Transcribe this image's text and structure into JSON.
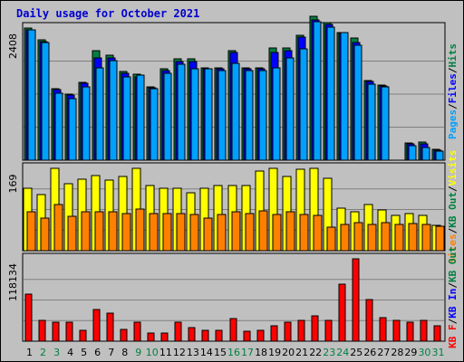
{
  "chart_data": {
    "type": "bar",
    "title": "Daily usage for October 2021",
    "days": [
      "1",
      "2",
      "3",
      "4",
      "5",
      "6",
      "7",
      "8",
      "9",
      "10",
      "11",
      "12",
      "13",
      "14",
      "15",
      "16",
      "17",
      "18",
      "19",
      "20",
      "21",
      "22",
      "23",
      "24",
      "25",
      "26",
      "27",
      "28",
      "29",
      "30",
      "31"
    ],
    "weekend_days": [
      "2",
      "3",
      "9",
      "10",
      "16",
      "17",
      "23",
      "24",
      "30",
      "31"
    ],
    "panels": [
      {
        "id": "hits-files-pages",
        "max_label": "2408",
        "ymax": 2408,
        "legend": [
          {
            "text": "Pages",
            "color": "#00a0ff"
          },
          {
            "text": "/",
            "color": "#000000"
          },
          {
            "text": "Files",
            "color": "#0000ff"
          },
          {
            "text": "/",
            "color": "#000000"
          },
          {
            "text": "Hits",
            "color": "#008040"
          }
        ],
        "series": [
          {
            "name": "Hits",
            "color": "#008040",
            "values": [
              2408,
              2190,
              1300,
              1200,
              1420,
              2000,
              1910,
              1620,
              1560,
              1330,
              1670,
              1840,
              1840,
              1680,
              1680,
              2000,
              1690,
              1690,
              2040,
              2040,
              2280,
              2630,
              2500,
              2330,
              2230,
              1450,
              1370,
              0,
              320,
              330,
              200
            ]
          },
          {
            "name": "Files",
            "color": "#0000ff",
            "values": [
              2380,
              2160,
              1280,
              1180,
              1400,
              1870,
              1870,
              1580,
              1520,
              1320,
              1640,
              1790,
              1800,
              1670,
              1670,
              1960,
              1670,
              1670,
              1970,
              2000,
              2250,
              2560,
              2480,
              2310,
              2150,
              1440,
              1360,
              0,
              300,
              300,
              180
            ]
          },
          {
            "name": "Pages",
            "color": "#00a0ff",
            "values": [
              2380,
              2140,
              1220,
              1120,
              1340,
              1690,
              1820,
              1520,
              1550,
              1300,
              1580,
              1750,
              1660,
              1660,
              1640,
              1760,
              1630,
              1630,
              1690,
              1860,
              2030,
              2530,
              2420,
              2330,
              2090,
              1390,
              1330,
              0,
              260,
              230,
              160
            ]
          }
        ]
      },
      {
        "id": "sites-kbout-visits",
        "max_label": "169",
        "ymax": 169,
        "legend": [
          {
            "text": "Sites",
            "color": "#ff8000"
          },
          {
            "text": "/",
            "color": "#000000"
          },
          {
            "text": "KB Out",
            "color": "#008040"
          },
          {
            "text": "/",
            "color": "#000000"
          },
          {
            "text": "Visits",
            "color": "#ffff00"
          }
        ],
        "series": [
          {
            "name": "Visits",
            "color": "#ffff00",
            "values": [
              129,
              116,
              169,
              138,
              146,
              155,
              145,
              152,
              169,
              134,
              129,
              129,
              119,
              129,
              134,
              134,
              134,
              164,
              169,
              153,
              167,
              169,
              149,
              87,
              79,
              94,
              84,
              72,
              77,
              72,
              52
            ]
          },
          {
            "name": "Sites",
            "color": "#ff8000",
            "values": [
              79,
              67,
              95,
              70,
              79,
              79,
              79,
              77,
              86,
              76,
              77,
              76,
              74,
              66,
              74,
              79,
              77,
              82,
              74,
              79,
              74,
              72,
              48,
              54,
              58,
              54,
              57,
              54,
              56,
              54,
              50
            ]
          }
        ]
      },
      {
        "id": "kbf-kbin-kbout",
        "max_label": "118134",
        "ymax": 118134,
        "legend": [
          {
            "text": "KB F",
            "color": "#ff0000"
          },
          {
            "text": "/",
            "color": "#000000"
          },
          {
            "text": "KB In",
            "color": "#0000ff"
          },
          {
            "text": "/",
            "color": "#000000"
          },
          {
            "text": "KB Out",
            "color": "#008040"
          }
        ],
        "series": [
          {
            "name": "KB F",
            "color": "#ff0000",
            "values": [
              67000,
              30000,
              27000,
              27000,
              16000,
              45000,
              40000,
              17000,
              27000,
              12000,
              12000,
              27000,
              20000,
              16000,
              16000,
              32000,
              14000,
              16000,
              22000,
              27000,
              30000,
              36000,
              30000,
              82000,
              118134,
              60000,
              34000,
              30000,
              27000,
              30000,
              22000
            ]
          }
        ]
      }
    ]
  }
}
